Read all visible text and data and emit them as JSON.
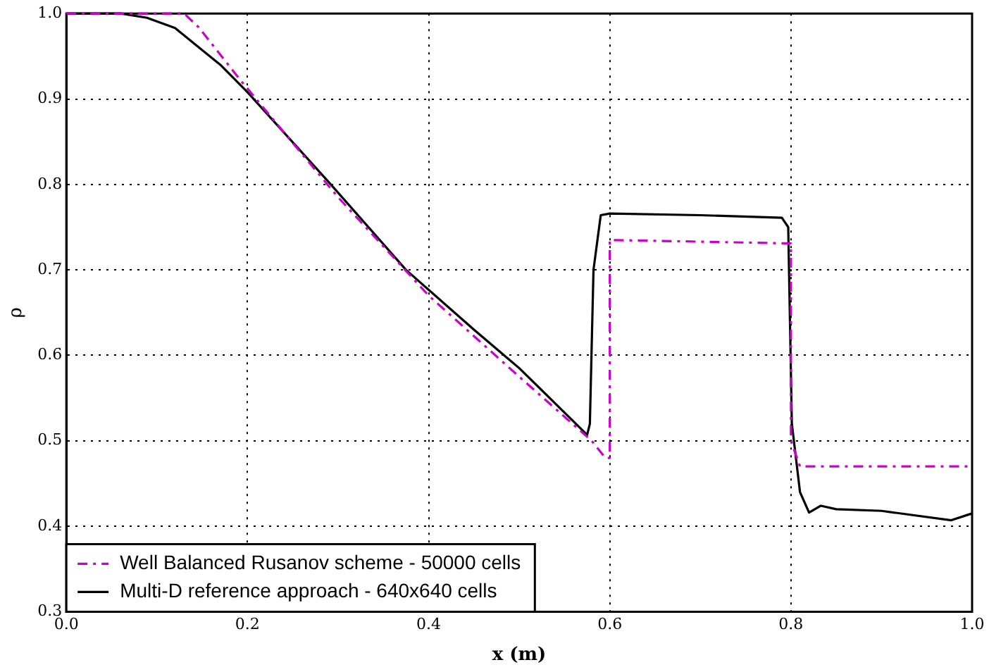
{
  "chart_data": {
    "type": "line",
    "xlabel": "x (m)",
    "ylabel": "ρ",
    "xlim": [
      0,
      1
    ],
    "xticks": [
      {
        "value": 0,
        "label": "0.0"
      },
      0.2,
      0.4,
      0.6,
      0.8,
      {
        "value": 1,
        "label": "1.0"
      }
    ],
    "ylim": [
      0.3,
      1
    ],
    "yticks": [
      0.3,
      0.4,
      0.5,
      0.6,
      0.7,
      0.8,
      0.9,
      {
        "value": 1,
        "label": "1.0"
      }
    ],
    "grid": true,
    "legend": "bottom left",
    "marker": "none",
    "series": [
      {
        "name": "Well Balanced Rusanov scheme - 50000 cells",
        "color": "#cc00cc",
        "line_style": "dashed",
        "x": [
          0,
          0.13,
          0.146,
          0.193,
          0.3,
          0.4,
          0.5,
          0.58,
          0.595,
          0.6,
          0.6,
          0.8,
          0.8,
          0.81,
          1.0
        ],
        "values": [
          1.0,
          1.0,
          0.984,
          0.921,
          0.785,
          0.67,
          0.575,
          0.5,
          0.48,
          0.48,
          0.735,
          0.731,
          0.5,
          0.47,
          0.47
        ]
      },
      {
        "name": "Multi-D reference approach - 640x640 cells",
        "color": "#000000",
        "line_style": "solid",
        "x": [
          0,
          0.06,
          0.089,
          0.12,
          0.141,
          0.17,
          0.2,
          0.292,
          0.375,
          0.45,
          0.5,
          0.575,
          0.578,
          0.582,
          0.59,
          0.6,
          0.7,
          0.79,
          0.797,
          0.801,
          0.81,
          0.82,
          0.833,
          0.85,
          0.9,
          0.977,
          1.0
        ],
        "values": [
          1.0,
          1.0,
          0.995,
          0.983,
          0.965,
          0.94,
          0.908,
          0.8,
          0.7,
          0.63,
          0.585,
          0.507,
          0.52,
          0.7,
          0.764,
          0.766,
          0.764,
          0.761,
          0.75,
          0.52,
          0.44,
          0.416,
          0.424,
          0.42,
          0.418,
          0.407,
          0.415
        ]
      }
    ]
  }
}
